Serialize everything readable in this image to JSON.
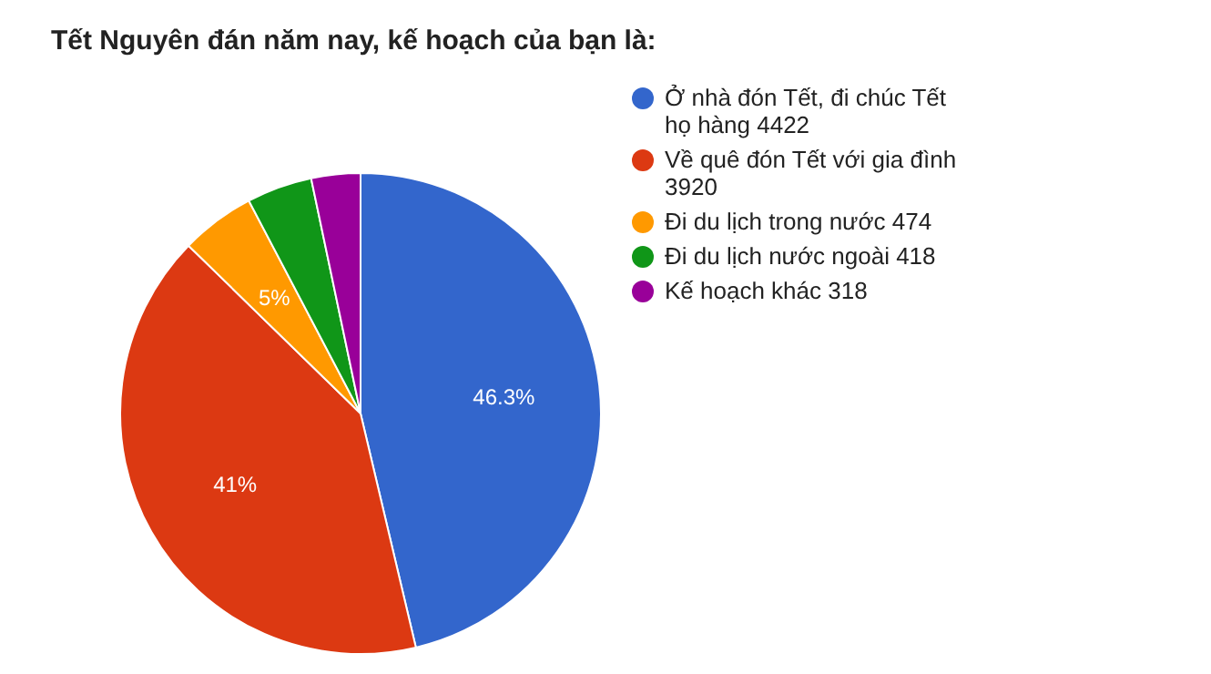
{
  "chart_data": {
    "type": "pie",
    "title": "Tết Nguyên đán năm nay, kế hoạch của bạn là:",
    "categories": [
      "Ở nhà đón Tết, đi chúc Tết họ hàng 4422",
      "Về quê đón Tết với gia đình 3920",
      "Đi du lịch trong nước 474",
      "Đi du lịch nước ngoài 418",
      "Kế hoạch khác 318"
    ],
    "values": [
      46.3,
      41,
      5,
      4.4,
      3.3
    ],
    "colors": [
      "#3366cc",
      "#dc3912",
      "#ff9900",
      "#109618",
      "#990099"
    ],
    "value_labels": [
      "46.3%",
      "41%",
      "5%",
      null,
      null
    ],
    "legend": "top right"
  }
}
